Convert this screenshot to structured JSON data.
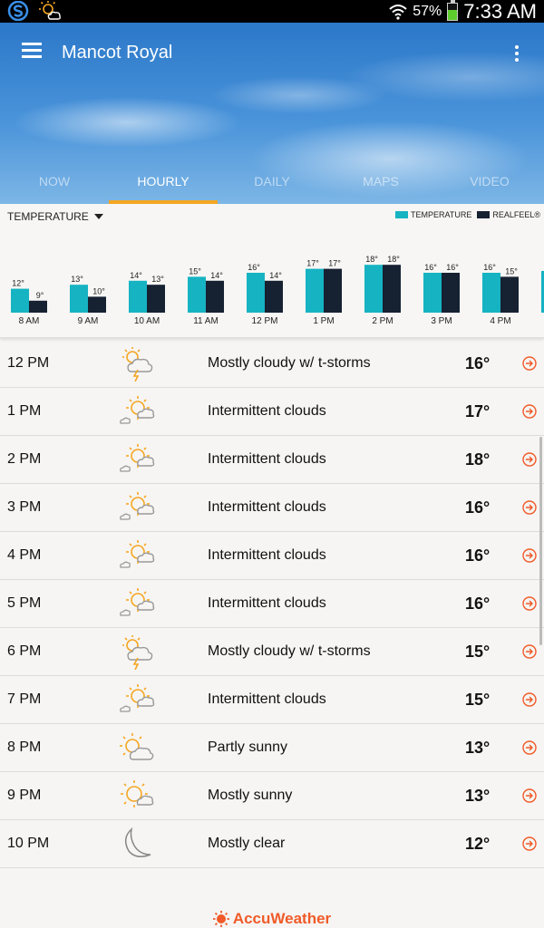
{
  "status_bar": {
    "battery_pct": "57%",
    "battery_level": 0.57,
    "time": "7:33 AM"
  },
  "header": {
    "location": "Mancot Royal"
  },
  "tabs": [
    {
      "label": "NOW",
      "active": false
    },
    {
      "label": "HOURLY",
      "active": true
    },
    {
      "label": "DAILY",
      "active": false
    },
    {
      "label": "MAPS",
      "active": false
    },
    {
      "label": "VIDEO",
      "active": false
    }
  ],
  "chart_panel": {
    "selector": "TEMPERATURE",
    "legend": [
      "TEMPERATURE",
      "REALFEEL®"
    ]
  },
  "colors": {
    "temperature": "#16b3c2",
    "realfeel": "#162132",
    "accent": "#f5a623",
    "brand": "#f05a28"
  },
  "chart_data": {
    "type": "bar",
    "categories": [
      "8 AM",
      "9 AM",
      "10 AM",
      "11 AM",
      "12 PM",
      "1 PM",
      "2 PM",
      "3 PM",
      "4 PM"
    ],
    "series": [
      {
        "name": "TEMPERATURE",
        "values": [
          12,
          13,
          14,
          15,
          16,
          17,
          18,
          16,
          16
        ],
        "labels": [
          "12°",
          "13°",
          "14°",
          "15°",
          "16°",
          "17°",
          "18°",
          "16°",
          "16°"
        ]
      },
      {
        "name": "REALFEEL®",
        "values": [
          9,
          10,
          13,
          14,
          14,
          17,
          18,
          16,
          15
        ],
        "labels": [
          "9°",
          "10°",
          "13°",
          "14°",
          "14°",
          "17°",
          "18°",
          "16°",
          "15°"
        ]
      }
    ]
  },
  "hourly": [
    {
      "time": "12 PM",
      "icon": "thunder-cloud-icon",
      "phrase": "Mostly cloudy w/ t-storms",
      "temp": "16°"
    },
    {
      "time": "1 PM",
      "icon": "sun-cloud-icon",
      "phrase": "Intermittent clouds",
      "temp": "17°"
    },
    {
      "time": "2 PM",
      "icon": "sun-cloud-icon",
      "phrase": "Intermittent clouds",
      "temp": "18°"
    },
    {
      "time": "3 PM",
      "icon": "sun-cloud-icon",
      "phrase": "Intermittent clouds",
      "temp": "16°"
    },
    {
      "time": "4 PM",
      "icon": "sun-cloud-icon",
      "phrase": "Intermittent clouds",
      "temp": "16°"
    },
    {
      "time": "5 PM",
      "icon": "sun-cloud-icon",
      "phrase": "Intermittent clouds",
      "temp": "16°"
    },
    {
      "time": "6 PM",
      "icon": "thunder-cloud-icon",
      "phrase": "Mostly cloudy w/ t-storms",
      "temp": "15°"
    },
    {
      "time": "7 PM",
      "icon": "sun-cloud-icon",
      "phrase": "Intermittent clouds",
      "temp": "15°"
    },
    {
      "time": "8 PM",
      "icon": "partly-sunny-icon",
      "phrase": "Partly sunny",
      "temp": "13°"
    },
    {
      "time": "9 PM",
      "icon": "mostly-sunny-icon",
      "phrase": "Mostly sunny",
      "temp": "13°"
    },
    {
      "time": "10 PM",
      "icon": "moon-icon",
      "phrase": "Mostly clear",
      "temp": "12°"
    }
  ],
  "footer": {
    "brand": "AccuWeather"
  }
}
